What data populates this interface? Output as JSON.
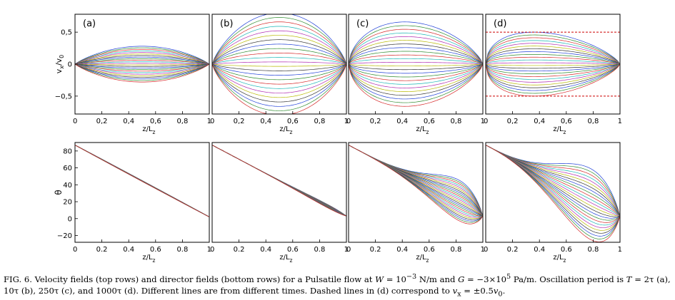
{
  "figure": {
    "panel_labels": [
      "(a)",
      "(b)",
      "(c)",
      "(d)"
    ],
    "top_ylabel_main": "v",
    "top_ylabel_sub1": "x",
    "top_ylabel_mid": "/v",
    "top_ylabel_sub2": "0",
    "bottom_ylabel": "θ",
    "xlabel_main": "z/L",
    "xlabel_sub": "z"
  },
  "caption": {
    "fig_label": "FIG. 6.",
    "t1": "Velocity fields (top rows) and director fields (bottom rows) for a Pulsatile flow at",
    "W": "W",
    "t2": "= 10",
    "W_exp": "−3",
    "t3": "N/m and",
    "G": "G",
    "t4": "= −3×10",
    "G_exp": "5",
    "t5": "Pa/m. Oscillation period is",
    "T": "T",
    "t6": "= 2τ",
    "t7": "(a), 10τ (b), 250τ (c), and 1000τ (d). Different lines are from different times. Dashed lines in (d) correspond to",
    "vx": "v",
    "vx_sub": "x",
    "t8": "= ±0.5",
    "v0": "v",
    "v0_sub": "0",
    "t9": "."
  },
  "chart_data": [
    {
      "type": "line",
      "panel": "(a)",
      "row": "top",
      "ylabel": "v_x/v_0",
      "xlabel": "z/L_z",
      "xlim": [
        0,
        1
      ],
      "ylim": [
        -0.78,
        0.78
      ],
      "xticks": [
        "0",
        "0,2",
        "0,4",
        "0,6",
        "0,8",
        "1"
      ],
      "yticks": [
        {
          "v": 0.5,
          "label": "0,5"
        },
        {
          "v": 0,
          "label": "0"
        },
        {
          "v": -0.5,
          "label": "−0,5"
        }
      ],
      "profile": "symmetric",
      "num_lines": 24,
      "peak": 0.28,
      "peak_x": 0.5
    },
    {
      "type": "line",
      "panel": "(b)",
      "row": "top",
      "xlabel": "z/L_z",
      "xlim": [
        0,
        1
      ],
      "ylim": [
        -0.78,
        0.78
      ],
      "xticks": [
        "0",
        "0,2",
        "0,4",
        "0,6",
        "0,8",
        "1"
      ],
      "profile": "symmetric",
      "num_lines": 24,
      "peak": 0.8,
      "peak_x": 0.48
    },
    {
      "type": "line",
      "panel": "(c)",
      "row": "top",
      "xlabel": "z/L_z",
      "xlim": [
        0,
        1
      ],
      "ylim": [
        -0.78,
        0.78
      ],
      "xticks": [
        "0",
        "0,2",
        "0,4",
        "0,6",
        "0,8",
        "1"
      ],
      "profile": "skewed",
      "num_lines": 24,
      "peak": 0.66,
      "peak_x": 0.42
    },
    {
      "type": "line",
      "panel": "(d)",
      "row": "top",
      "xlabel": "z/L_z",
      "xlim": [
        0,
        1
      ],
      "ylim": [
        -0.78,
        0.78
      ],
      "xticks": [
        "0",
        "0,2",
        "0,4",
        "0,6",
        "0,8",
        "1"
      ],
      "profile": "skewed",
      "num_lines": 24,
      "peak": 0.5,
      "peak_x": 0.36,
      "dashed_lines": [
        0.5,
        -0.5
      ]
    },
    {
      "type": "line",
      "panel": "(a)",
      "row": "bottom",
      "ylabel": "θ",
      "xlabel": "z/L_z",
      "xlim": [
        0,
        1
      ],
      "ylim": [
        -28,
        90
      ],
      "xticks": [
        "0",
        "0.2",
        "0.4",
        "0.6",
        "0.8",
        "1"
      ],
      "yticks": [
        {
          "v": 80,
          "label": "80"
        },
        {
          "v": 60,
          "label": "60"
        },
        {
          "v": 40,
          "label": "40"
        },
        {
          "v": 20,
          "label": "20"
        },
        {
          "v": 0,
          "label": "0"
        },
        {
          "v": -20,
          "label": "−20"
        }
      ],
      "theta_start": 87,
      "theta_end": 2,
      "num_lines": 24,
      "spread": 0.5,
      "peak_x": 0.5,
      "bulge_bias": 0
    },
    {
      "type": "line",
      "panel": "(b)",
      "row": "bottom",
      "xlabel": "z/L_z",
      "xlim": [
        0,
        1
      ],
      "ylim": [
        -28,
        90
      ],
      "xticks": [
        "0",
        "0.2",
        "0.4",
        "0.6",
        "0.8",
        "1"
      ],
      "theta_start": 87,
      "theta_end": 3,
      "num_lines": 24,
      "spread": 2,
      "peak_x": 0.85,
      "bulge_bias": 0
    },
    {
      "type": "line",
      "panel": "(c)",
      "row": "bottom",
      "xlabel": "z/L_z",
      "xlim": [
        0,
        1
      ],
      "ylim": [
        -28,
        90
      ],
      "xticks": [
        "0",
        "0.2",
        "0.4",
        "0.6",
        "0.8",
        "1"
      ],
      "theta_start": 87,
      "theta_end": 3,
      "num_lines": 24,
      "spread": 24,
      "peak_x": 0.82,
      "bulge_bias": -0.15
    },
    {
      "type": "line",
      "panel": "(d)",
      "row": "bottom",
      "xlabel": "z/L_z",
      "xlim": [
        0,
        1
      ],
      "ylim": [
        -28,
        90
      ],
      "xticks": [
        "0",
        "0.2",
        "0.4",
        "0.6",
        "0.8",
        "1"
      ],
      "theta_start": 87,
      "theta_end": 3,
      "num_lines": 24,
      "spread": 42,
      "peak_x": 0.78,
      "bulge_bias": 0.1
    }
  ]
}
